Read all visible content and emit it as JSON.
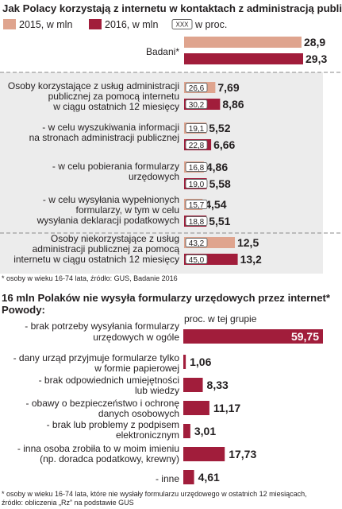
{
  "colors": {
    "y2015": "#dfa48e",
    "y2016": "#a11d3b",
    "panel": "#ececec",
    "divider": "#8a8a8a",
    "text": "#231f20"
  },
  "chart_data": [
    {
      "type": "bar",
      "title": "Jak Polacy korzystają z internetu w kontaktach z administracją publiczną",
      "legend": [
        "2015, w mln",
        "2016, w mln",
        "w proc."
      ],
      "legend_sample": "XXX",
      "series": [
        {
          "name": "2015, w mln"
        },
        {
          "name": "2016, w mln"
        }
      ],
      "groups": [
        {
          "label": [
            "Badani*"
          ],
          "v2015": 28.9,
          "v2016": 29.3,
          "p2015": "",
          "p2016": "",
          "v2015_text": "28,9",
          "v2016_text": "29,3"
        },
        {
          "label": [
            "Osoby korzystające z usług administracji",
            "publicznej za pomocą internetu",
            "w ciągu ostatnich 12 miesięcy"
          ],
          "v2015": 7.69,
          "v2016": 8.86,
          "p2015": "26,6",
          "p2016": "30,2",
          "v2015_text": "7,69",
          "v2016_text": "8,86"
        },
        {
          "label": [
            "- w celu wyszukiwania informacji",
            "na stronach administracji publicznej"
          ],
          "v2015": 5.52,
          "v2016": 6.66,
          "p2015": "19,1",
          "p2016": "22,8",
          "v2015_text": "5,52",
          "v2016_text": "6,66"
        },
        {
          "label": [
            "- w celu pobierania formularzy",
            "urzędowych"
          ],
          "v2015": 4.86,
          "v2016": 5.58,
          "p2015": "16,8",
          "p2016": "19,0",
          "v2015_text": "4,86",
          "v2016_text": "5,58"
        },
        {
          "label": [
            "- w celu wysyłania wypełnionych",
            "formularzy, w tym w celu",
            "wysyłania deklaracji podatkowych"
          ],
          "v2015": 4.54,
          "v2016": 5.51,
          "p2015": "15,7",
          "p2016": "18,8",
          "v2015_text": "4,54",
          "v2016_text": "5,51"
        },
        {
          "label": [
            "Osoby niekorzystające z usług",
            "administracji publicznej za pomocą",
            "internetu w ciągu ostatnich 12 miesięcy"
          ],
          "v2015": 12.5,
          "v2016": 13.2,
          "p2015": "43,2",
          "p2016": "45,0",
          "v2015_text": "12,5",
          "v2016_text": "13,2"
        }
      ],
      "footnote": "* osoby w wieku 16-74 lata, źródło: GUS, Badanie 2016"
    },
    {
      "type": "bar",
      "title": "16 mln Polaków nie wysyła formularzy urzędowych przez internet*",
      "subtitle": "Powody:",
      "column_header": "proc. w tej grupie",
      "categories": [
        [
          "- brak potrzeby wysyłania formularzy",
          "urzędowych w ogóle"
        ],
        [
          "- dany urząd przyjmuje formularze tylko",
          "w formie papierowej"
        ],
        [
          "- brak odpowiednich umiejętności",
          "lub wiedzy"
        ],
        [
          "- obawy o bezpieczeństwo i ochronę",
          "danych osobowych"
        ],
        [
          "- brak lub problemy z podpisem",
          "elektronicznym"
        ],
        [
          "- inna osoba zrobiła to w moim imieniu",
          "(np. doradca podatkowy, krewny)"
        ],
        [
          "- inne"
        ]
      ],
      "values": [
        59.75,
        1.06,
        8.33,
        11.17,
        3.01,
        17.73,
        4.61
      ],
      "value_texts": [
        "59,75",
        "1,06",
        "8,33",
        "11,17",
        "3,01",
        "17,73",
        "4,61"
      ],
      "footnote": [
        "* osoby w wieku 16-74 lata, które nie wysłały formularzu urzędowego w ostatnich 12 miesiącach,",
        "źródło: obliczenia „Rz” na podstawie GUS"
      ]
    }
  ]
}
